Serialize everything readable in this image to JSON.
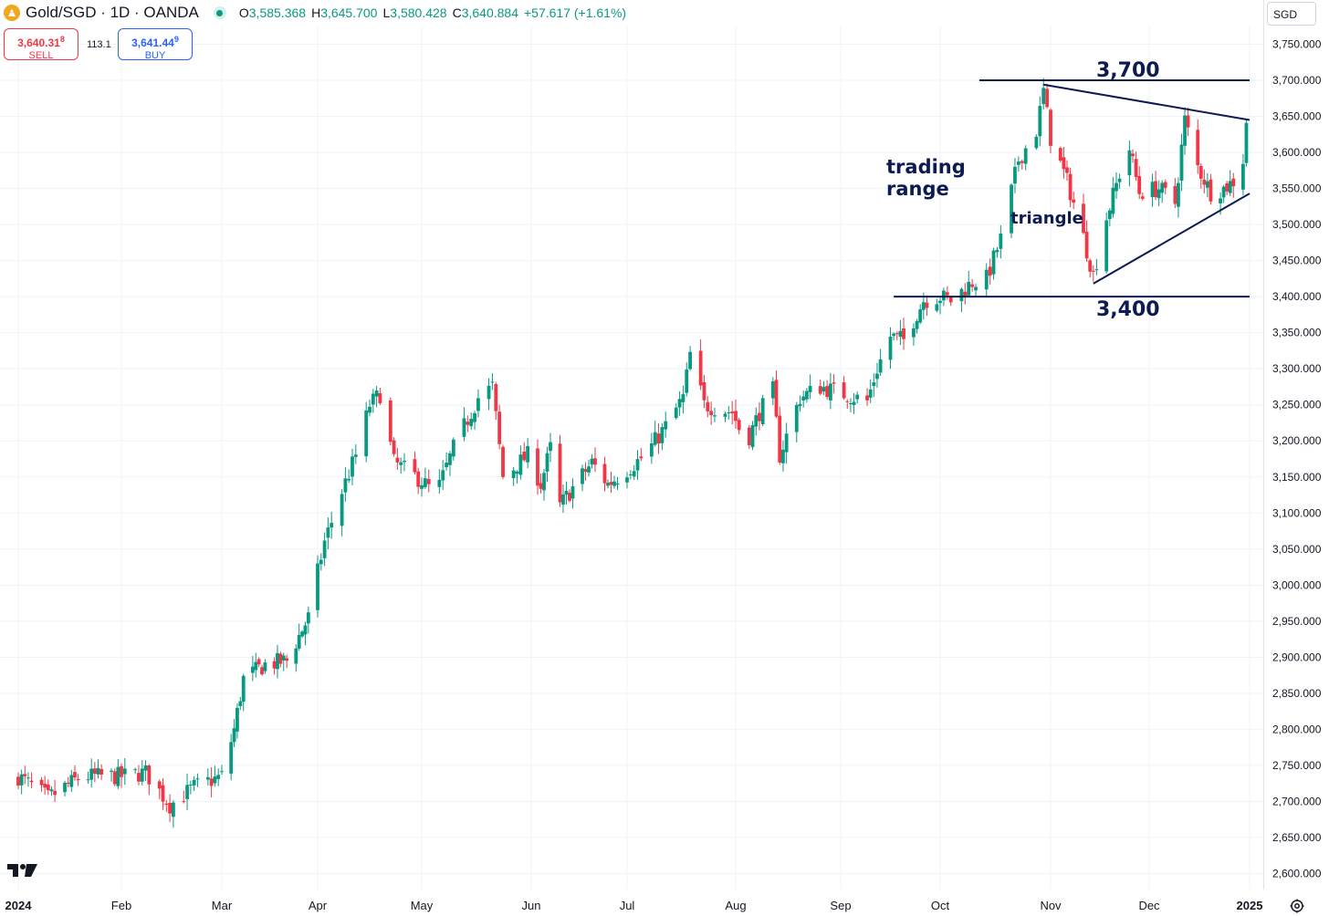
{
  "header": {
    "symbol": "Gold/SGD · 1D · OANDA",
    "ohlc": [
      {
        "label": "O",
        "value": "3,585.368"
      },
      {
        "label": "H",
        "value": "3,645.700"
      },
      {
        "label": "L",
        "value": "3,580.428"
      },
      {
        "label": "C",
        "value": "3,640.884"
      }
    ],
    "change": "+57.617 (+1.61%)"
  },
  "trade": {
    "sell_price": "3,640.31",
    "sell_price_sup": "8",
    "sell_label": "SELL",
    "spread": "113.1",
    "buy_price": "3,641.44",
    "buy_price_sup": "9",
    "buy_label": "BUY"
  },
  "currency": "SGD",
  "colors": {
    "up": "#089981",
    "down": "#f23645",
    "annotation": "#0d1b52",
    "grid": "#f0f3fa"
  },
  "chart_data": {
    "type": "candlestick",
    "title": "",
    "xlabel": "",
    "ylabel": "",
    "ylim": [
      2590,
      3765
    ],
    "y_ticks": [
      "3,750.000",
      "3,700.000",
      "3,650.000",
      "3,600.000",
      "3,550.000",
      "3,500.000",
      "3,450.000",
      "3,400.000",
      "3,350.000",
      "3,300.000",
      "3,250.000",
      "3,200.000",
      "3,150.000",
      "3,100.000",
      "3,050.000",
      "3,000.000",
      "2,950.000",
      "2,900.000",
      "2,850.000",
      "2,800.000",
      "2,750.000",
      "2,700.000",
      "2,650.000",
      "2,600.000"
    ],
    "x_ticks": [
      "2024",
      "Feb",
      "Mar",
      "Apr",
      "May",
      "Jun",
      "Jul",
      "Aug",
      "Sep",
      "Oct",
      "Nov",
      "Dec",
      "2025"
    ],
    "x_tick_dates": [
      "2024-01-01",
      "2024-02-01",
      "2024-03-01",
      "2024-04-01",
      "2024-05-01",
      "2024-06-01",
      "2024-07-01",
      "2024-08-01",
      "2024-09-01",
      "2024-10-01",
      "2024-11-01",
      "2024-12-01",
      "2025-01-01"
    ],
    "close_anchors": [
      [
        "2024-01-01",
        2735
      ],
      [
        "2024-01-10",
        2705
      ],
      [
        "2024-01-20",
        2735
      ],
      [
        "2024-02-01",
        2735
      ],
      [
        "2024-02-08",
        2740
      ],
      [
        "2024-02-15",
        2695
      ],
      [
        "2024-02-22",
        2720
      ],
      [
        "2024-03-01",
        2735
      ],
      [
        "2024-03-05",
        2800
      ],
      [
        "2024-03-08",
        2870
      ],
      [
        "2024-03-15",
        2890
      ],
      [
        "2024-03-22",
        2895
      ],
      [
        "2024-03-29",
        2955
      ],
      [
        "2024-04-03",
        3060
      ],
      [
        "2024-04-08",
        3130
      ],
      [
        "2024-04-12",
        3180
      ],
      [
        "2024-04-16",
        3250
      ],
      [
        "2024-04-19",
        3265
      ],
      [
        "2024-04-23",
        3170
      ],
      [
        "2024-05-01",
        3145
      ],
      [
        "2024-05-05",
        3125
      ],
      [
        "2024-05-10",
        3190
      ],
      [
        "2024-05-17",
        3260
      ],
      [
        "2024-05-21",
        3275
      ],
      [
        "2024-05-24",
        3150
      ],
      [
        "2024-05-31",
        3180
      ],
      [
        "2024-06-04",
        3140
      ],
      [
        "2024-06-07",
        3190
      ],
      [
        "2024-06-10",
        3110
      ],
      [
        "2024-06-14",
        3135
      ],
      [
        "2024-06-20",
        3170
      ],
      [
        "2024-06-25",
        3140
      ],
      [
        "2024-07-01",
        3160
      ],
      [
        "2024-07-06",
        3180
      ],
      [
        "2024-07-12",
        3220
      ],
      [
        "2024-07-17",
        3260
      ],
      [
        "2024-07-19",
        3320
      ],
      [
        "2024-07-23",
        3250
      ],
      [
        "2024-07-31",
        3240
      ],
      [
        "2024-08-04",
        3195
      ],
      [
        "2024-08-08",
        3240
      ],
      [
        "2024-08-12",
        3270
      ],
      [
        "2024-08-14",
        3180
      ],
      [
        "2024-08-20",
        3260
      ],
      [
        "2024-08-26",
        3275
      ],
      [
        "2024-09-02",
        3265
      ],
      [
        "2024-09-09",
        3255
      ],
      [
        "2024-09-12",
        3300
      ],
      [
        "2024-09-16",
        3345
      ],
      [
        "2024-09-20",
        3340
      ],
      [
        "2024-09-26",
        3395
      ],
      [
        "2024-10-01",
        3400
      ],
      [
        "2024-10-04",
        3395
      ],
      [
        "2024-10-10",
        3420
      ],
      [
        "2024-10-14",
        3425
      ],
      [
        "2024-10-18",
        3480
      ],
      [
        "2024-10-23",
        3590
      ],
      [
        "2024-10-28",
        3630
      ],
      [
        "2024-10-30",
        3685
      ],
      [
        "2024-11-01",
        3620
      ],
      [
        "2024-11-06",
        3560
      ],
      [
        "2024-11-10",
        3500
      ],
      [
        "2024-11-14",
        3430
      ],
      [
        "2024-11-18",
        3510
      ],
      [
        "2024-11-22",
        3570
      ],
      [
        "2024-11-25",
        3605
      ],
      [
        "2024-11-28",
        3545
      ],
      [
        "2024-12-04",
        3550
      ],
      [
        "2024-12-09",
        3530
      ],
      [
        "2024-12-12",
        3645
      ],
      [
        "2024-12-16",
        3580
      ],
      [
        "2024-12-20",
        3545
      ],
      [
        "2024-12-24",
        3550
      ],
      [
        "2024-12-27",
        3560
      ],
      [
        "2024-12-30",
        3590
      ],
      [
        "2024-12-31",
        3640.884
      ]
    ],
    "annotations": [
      {
        "label": "3,700",
        "type": "horizontal_line",
        "value": 3700,
        "from": "2024-10-12",
        "to": "2025-01-01"
      },
      {
        "label": "3,400",
        "type": "horizontal_line",
        "value": 3400,
        "from": "2024-09-17",
        "to": "2025-01-01"
      },
      {
        "label": "triangle",
        "type": "triangle",
        "upper": [
          [
            "2024-10-30",
            3694
          ],
          [
            "2025-01-01",
            3645
          ]
        ],
        "lower": [
          [
            "2024-11-14",
            3418
          ],
          [
            "2025-01-01",
            3543
          ]
        ]
      },
      {
        "label": "trading range",
        "type": "text"
      }
    ]
  }
}
